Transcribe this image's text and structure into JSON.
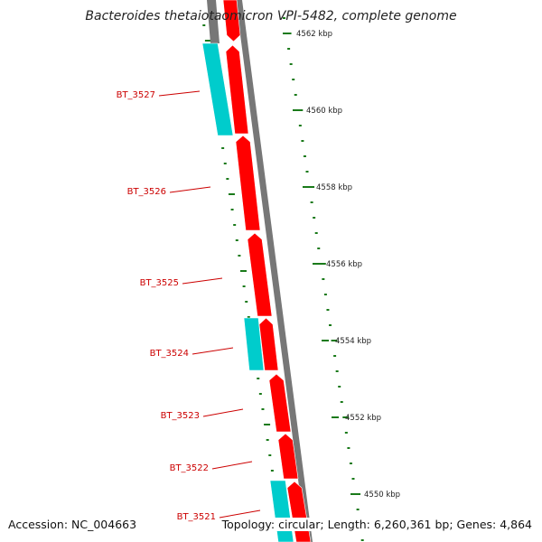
{
  "header": {
    "title": "Bacteroides thetaiotaomicron VPI-5482, complete genome"
  },
  "footer": {
    "accession": "Accession: NC_004663",
    "topology": "Topology: circular; Length: 6,260,361 bp; Genes: 4,864"
  },
  "colors": {
    "forward_gene": "#ff0000",
    "reverse_gene": "#00cccc",
    "backbone": "#777777",
    "tick": "#1a7a1a",
    "gene_label": "#cc0000",
    "tick_label": "#222222"
  },
  "genes": [
    {
      "name": "BT_3527"
    },
    {
      "name": "BT_3526"
    },
    {
      "name": "BT_3525"
    },
    {
      "name": "BT_3524"
    },
    {
      "name": "BT_3523"
    },
    {
      "name": "BT_3522"
    },
    {
      "name": "BT_3521"
    }
  ],
  "scale": {
    "unit": "kbp",
    "labels": [
      "4562 kbp",
      "4560 kbp",
      "4558 kbp",
      "4556 kbp",
      "4554 kbp",
      "4552 kbp",
      "4550 kbp"
    ]
  }
}
